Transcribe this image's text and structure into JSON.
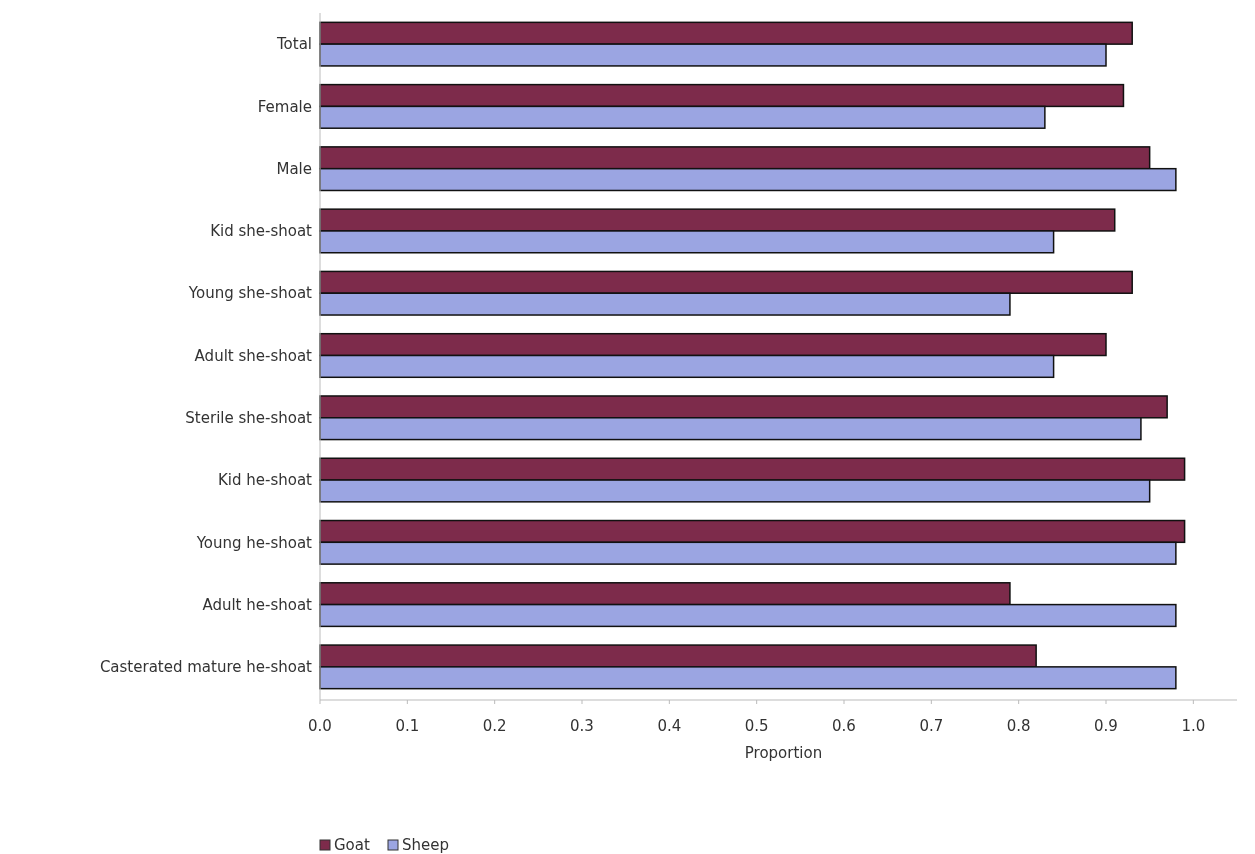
{
  "chart_data": {
    "type": "bar",
    "orientation": "horizontal",
    "xlabel": "Proportion",
    "categories": [
      "Total",
      "Female",
      "Male",
      "Kid she-shoat",
      "Young she-shoat",
      "Adult she-shoat",
      "Sterile she-shoat",
      "Kid he-shoat",
      "Young he-shoat",
      "Adult he-shoat",
      "Casterated mature he-shoat"
    ],
    "series": [
      {
        "name": "Goat",
        "color": "#7d2b4b",
        "values": [
          0.93,
          0.92,
          0.95,
          0.91,
          0.93,
          0.9,
          0.97,
          0.99,
          0.99,
          0.79,
          0.82
        ]
      },
      {
        "name": "Sheep",
        "color": "#9ba5e2",
        "values": [
          0.9,
          0.83,
          0.98,
          0.84,
          0.79,
          0.84,
          0.94,
          0.95,
          0.98,
          0.98,
          0.98
        ]
      }
    ],
    "xlim": [
      0,
      1.05
    ],
    "xticks": [
      {
        "value": 0,
        "label": "0.0"
      },
      {
        "value": 0.1,
        "label": "0.1"
      },
      {
        "value": 0.2,
        "label": "0.2"
      },
      {
        "value": 0.3,
        "label": "0.3"
      },
      {
        "value": 0.4,
        "label": "0.4"
      },
      {
        "value": 0.5,
        "label": "0.5"
      },
      {
        "value": 0.6,
        "label": "0.6"
      },
      {
        "value": 0.7,
        "label": "0.7"
      },
      {
        "value": 0.8,
        "label": "0.8"
      },
      {
        "value": 0.9,
        "label": "0.9"
      },
      {
        "value": 1,
        "label": "1.0"
      }
    ],
    "grid": false,
    "legend": "bottom left"
  }
}
